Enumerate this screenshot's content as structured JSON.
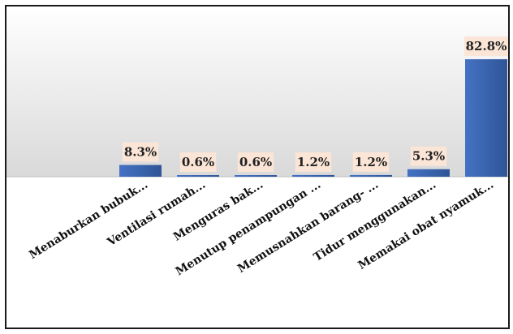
{
  "chart_data": {
    "type": "bar",
    "categories": [
      "Menaburkan bubuk...",
      "Ventilasi rumah...",
      "Menguras bak...",
      "Menutup penampungan ...",
      "Memusnahkan barang- ...",
      "Tidur menggunakan...",
      "Memakai obat nyamuk..."
    ],
    "series": [
      {
        "values": [
          8.3,
          0.6,
          0.6,
          1.2,
          1.2,
          5.3,
          82.8
        ]
      }
    ],
    "data_labels": [
      "8.3%",
      "0.6%",
      "0.6%",
      "1.2%",
      "1.2%",
      "5.3%",
      "82.8%"
    ],
    "ylim": [
      0,
      100
    ],
    "grid": false,
    "legend": "none",
    "colors": {
      "bar": "#4472c4",
      "bar_dark": "#2f5597",
      "label_bg": "#fbe5d6",
      "plot_bg_top": "#ffffff",
      "plot_bg_bottom": "#d9d9d9",
      "frame": "#1a1a1a"
    }
  }
}
